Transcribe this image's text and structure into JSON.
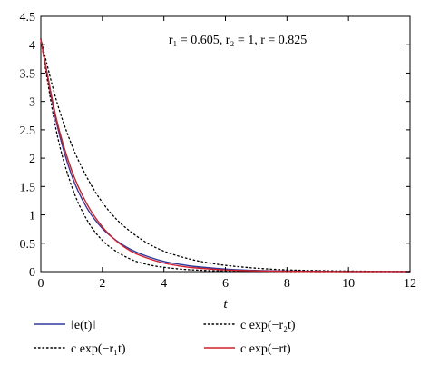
{
  "chart_data": {
    "type": "line",
    "title": "",
    "xlabel": "t",
    "ylabel": "",
    "xlim": [
      0,
      12
    ],
    "ylim": [
      0,
      4.5
    ],
    "xticks": [
      0,
      2,
      4,
      6,
      8,
      10,
      12
    ],
    "xtick_labels": [
      "0",
      "2",
      "4",
      "6",
      "8",
      "10",
      "12"
    ],
    "yticks": [
      0,
      0.5,
      1,
      1.5,
      2,
      2.5,
      3,
      3.5,
      4,
      4.5
    ],
    "ytick_labels": [
      "0",
      "0.5",
      "1",
      "1.5",
      "2",
      "2.5",
      "3",
      "3.5",
      "4",
      "4.5"
    ],
    "grid": false,
    "annotation": "r₁ = 0.605, r₂ = 1, r = 0.825",
    "legend_position": "bottom",
    "series": [
      {
        "name": "‖e(t)‖",
        "color": "#2e3a9c",
        "style": "solid",
        "x": [
          0,
          0.5,
          1,
          1.5,
          2,
          2.5,
          3,
          3.5,
          4,
          4.5,
          5,
          6,
          7,
          8,
          9,
          10,
          11,
          12
        ],
        "y": [
          4.1,
          2.65,
          1.7,
          1.12,
          0.76,
          0.53,
          0.37,
          0.26,
          0.18,
          0.13,
          0.09,
          0.045,
          0.02,
          0.01,
          0.004,
          0.002,
          0.001,
          0.0
        ]
      },
      {
        "name": "c exp(−r₁t)",
        "color": "#000000",
        "style": "dotted",
        "x": [
          0,
          0.5,
          1,
          1.5,
          2,
          2.5,
          3,
          3.5,
          4,
          4.5,
          5,
          5.5,
          6,
          7,
          8,
          9,
          10,
          11,
          12
        ],
        "y": [
          4.1,
          3.03,
          2.24,
          1.66,
          1.22,
          0.9,
          0.67,
          0.49,
          0.36,
          0.27,
          0.2,
          0.15,
          0.11,
          0.06,
          0.03,
          0.017,
          0.01,
          0.005,
          0.003
        ]
      },
      {
        "name": "c exp(−r₂t)",
        "color": "#000000",
        "style": "dotted",
        "x": [
          0,
          0.5,
          1,
          1.5,
          2,
          2.5,
          3,
          3.5,
          4,
          4.5,
          5,
          6,
          7,
          8,
          9,
          10,
          11,
          12
        ],
        "y": [
          4.1,
          2.49,
          1.51,
          0.91,
          0.55,
          0.34,
          0.2,
          0.12,
          0.075,
          0.046,
          0.028,
          0.01,
          0.004,
          0.001,
          0.0005,
          0.0002,
          0.0001,
          0.0
        ]
      },
      {
        "name": "c exp(−rt)",
        "color": "#d0202a",
        "style": "solid",
        "x": [
          0,
          0.5,
          1,
          1.5,
          2,
          2.5,
          3,
          3.5,
          4,
          4.5,
          5,
          6,
          7,
          8,
          9,
          10,
          11,
          12
        ],
        "y": [
          4.1,
          2.71,
          1.79,
          1.19,
          0.79,
          0.52,
          0.34,
          0.23,
          0.15,
          0.1,
          0.066,
          0.029,
          0.013,
          0.006,
          0.002,
          0.001,
          0.0005,
          0.0002
        ]
      }
    ],
    "legend_layout": [
      {
        "series": 0,
        "col": 0,
        "row": 0
      },
      {
        "series": 2,
        "col": 1,
        "row": 0
      },
      {
        "series": 1,
        "col": 0,
        "row": 1
      },
      {
        "series": 3,
        "col": 1,
        "row": 1
      }
    ]
  }
}
